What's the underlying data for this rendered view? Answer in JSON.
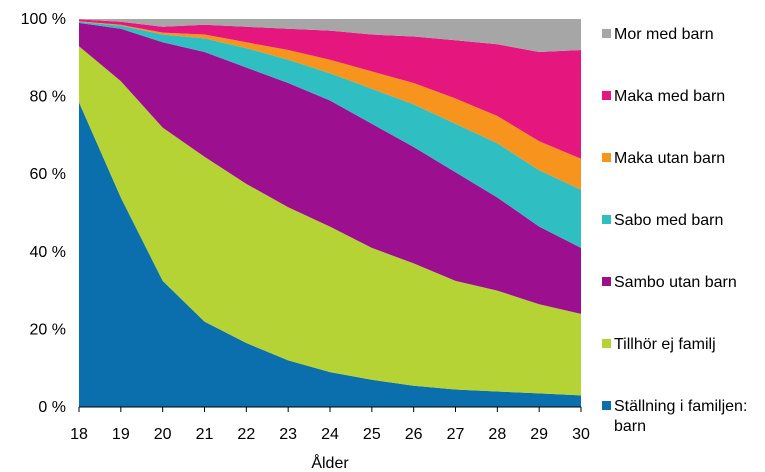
{
  "chart_data": {
    "type": "area",
    "stacked": true,
    "percent": true,
    "xlabel": "Ålder",
    "ylabel": "",
    "title": "",
    "ylim": [
      0,
      100
    ],
    "y_ticks": [
      "0 %",
      "20 %",
      "40 %",
      "60 %",
      "80 %",
      "100 %"
    ],
    "x": [
      18,
      19,
      20,
      21,
      22,
      23,
      24,
      25,
      26,
      27,
      28,
      29,
      30
    ],
    "legend_position": "right",
    "series": [
      {
        "name": "Ställning i familjen: barn",
        "label_lines": [
          "Ställning i familjen:",
          "barn"
        ],
        "color": "#0b6fad",
        "values": [
          78.5,
          54,
          32.5,
          22,
          16.5,
          12,
          9,
          7,
          5.5,
          4.5,
          4,
          3.5,
          3
        ]
      },
      {
        "name": "Tillhör ej familj",
        "label_lines": [
          "Tillhör ej familj"
        ],
        "color": "#b5d334",
        "values": [
          14.5,
          30,
          39.5,
          42.5,
          41,
          39.5,
          37.5,
          34,
          31.5,
          28,
          26,
          23,
          21
        ]
      },
      {
        "name": "Sambo utan barn",
        "label_lines": [
          "Sambo utan barn"
        ],
        "color": "#9c0f8e",
        "values": [
          6,
          13.5,
          22,
          27,
          30,
          32,
          32.5,
          32,
          30,
          28,
          24,
          20,
          17
        ]
      },
      {
        "name": "Sabo med barn",
        "label_lines": [
          "Sabo med barn"
        ],
        "color": "#2fbfc2",
        "values": [
          0.3,
          0.8,
          2,
          3.5,
          5,
          6,
          7,
          9,
          11,
          12.5,
          14,
          14.5,
          15
        ]
      },
      {
        "name": "Maka utan barn",
        "label_lines": [
          "Maka utan barn"
        ],
        "color": "#f7941d",
        "values": [
          0.1,
          0.2,
          0.5,
          1,
          1.5,
          2.5,
          3.5,
          4.5,
          5.5,
          6.5,
          7,
          7.5,
          8
        ]
      },
      {
        "name": "Maka med barn",
        "label_lines": [
          "Maka med barn"
        ],
        "color": "#e5177e",
        "values": [
          0.5,
          0.8,
          1.5,
          2.5,
          4,
          5.5,
          7.5,
          9.5,
          12,
          15,
          18.5,
          23,
          28
        ]
      },
      {
        "name": "Mor med barn",
        "label_lines": [
          "Mor med barn"
        ],
        "color": "#a6a6a6",
        "values": [
          0.1,
          0.7,
          2,
          1.5,
          2,
          2.5,
          3,
          4,
          4.5,
          5.5,
          6.5,
          8.5,
          8
        ]
      }
    ]
  }
}
